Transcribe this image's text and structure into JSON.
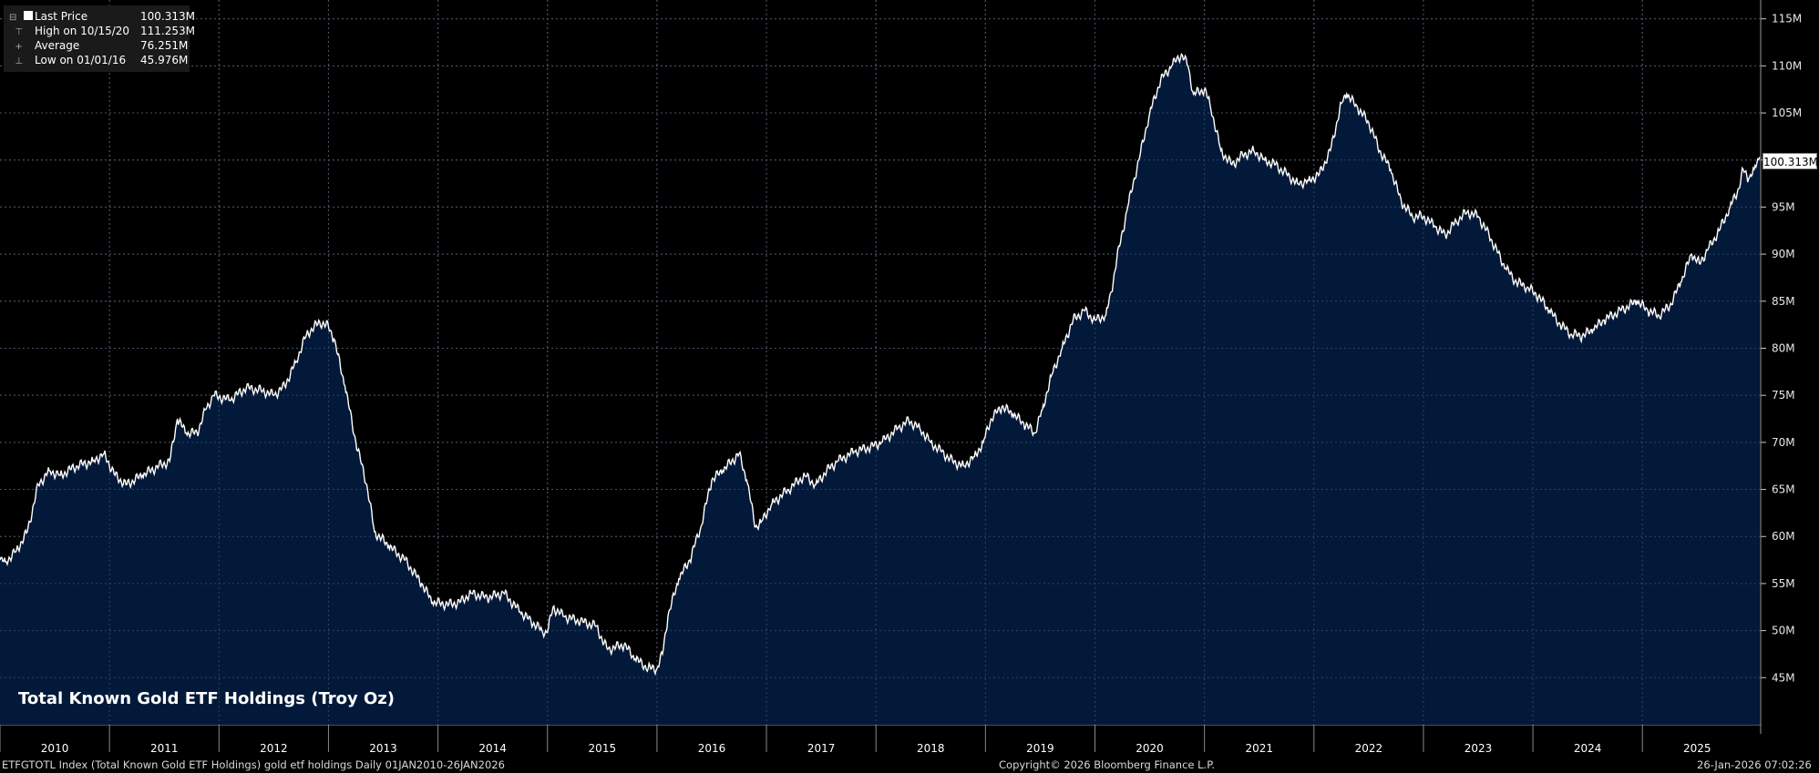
{
  "legend": {
    "last_label": "Last Price",
    "last_value": "100.313M",
    "high_label": "High on 10/15/20",
    "high_value": "111.253M",
    "avg_label": "Average",
    "avg_value": "76.251M",
    "low_label": "Low on 01/01/16",
    "low_value": "45.976M"
  },
  "last_tag": "100.313M",
  "footer": {
    "left": "ETFGTOTL Index (Total Known Gold ETF Holdings) gold etf holdings Daily 01JAN2010-26JAN2026",
    "center": "Copyright© 2026 Bloomberg Finance L.P.",
    "right": "26-Jan-2026 07:02:26"
  },
  "colors": {
    "background": "#000000",
    "area_fill": "#031a3a",
    "line": "#ffffff",
    "grid": "#6a6a6a"
  },
  "chart_data": {
    "type": "area",
    "title": "Total Known Gold ETF Holdings (Troy Oz)",
    "x_tick_labels": [
      "2010",
      "2011",
      "2012",
      "2013",
      "2014",
      "2015",
      "2016",
      "2017",
      "2018",
      "2019",
      "2020",
      "2021",
      "2022",
      "2023",
      "2024",
      "2025"
    ],
    "y_tick_labels": [
      "45M",
      "50M",
      "55M",
      "60M",
      "65M",
      "70M",
      "75M",
      "80M",
      "85M",
      "90M",
      "95M",
      "100M",
      "105M",
      "110M",
      "115M"
    ],
    "ylim": [
      40,
      117
    ],
    "y_unit": "M",
    "grid": true,
    "legend_position": "top-left",
    "series": [
      {
        "values": [
          [
            2010.0,
            57.5
          ],
          [
            2010.05,
            57.3
          ],
          [
            2010.15,
            58.5
          ],
          [
            2010.25,
            60.5
          ],
          [
            2010.35,
            65.5
          ],
          [
            2010.45,
            67.0
          ],
          [
            2010.55,
            66.5
          ],
          [
            2010.7,
            67.5
          ],
          [
            2010.85,
            68.0
          ],
          [
            2010.95,
            68.8
          ],
          [
            2011.05,
            66.5
          ],
          [
            2011.15,
            65.5
          ],
          [
            2011.3,
            66.5
          ],
          [
            2011.45,
            67.5
          ],
          [
            2011.55,
            68.0
          ],
          [
            2011.62,
            72.5
          ],
          [
            2011.7,
            71.0
          ],
          [
            2011.8,
            71.0
          ],
          [
            2011.88,
            73.5
          ],
          [
            2011.95,
            75.0
          ],
          [
            2012.1,
            74.5
          ],
          [
            2012.25,
            75.8
          ],
          [
            2012.4,
            75.5
          ],
          [
            2012.5,
            75.0
          ],
          [
            2012.6,
            76.0
          ],
          [
            2012.7,
            78.5
          ],
          [
            2012.8,
            81.5
          ],
          [
            2012.92,
            82.8
          ],
          [
            2013.0,
            82.3
          ],
          [
            2013.05,
            81.0
          ],
          [
            2013.15,
            76.0
          ],
          [
            2013.25,
            70.0
          ],
          [
            2013.35,
            65.5
          ],
          [
            2013.42,
            60.5
          ],
          [
            2013.55,
            59.0
          ],
          [
            2013.7,
            57.5
          ],
          [
            2013.85,
            55.0
          ],
          [
            2013.95,
            53.0
          ],
          [
            2014.1,
            52.8
          ],
          [
            2014.2,
            53.0
          ],
          [
            2014.3,
            54.0
          ],
          [
            2014.45,
            53.5
          ],
          [
            2014.6,
            54.0
          ],
          [
            2014.75,
            52.0
          ],
          [
            2014.85,
            51.0
          ],
          [
            2014.95,
            50.0
          ],
          [
            2015.0,
            49.8
          ],
          [
            2015.05,
            52.5
          ],
          [
            2015.15,
            51.5
          ],
          [
            2015.3,
            51.0
          ],
          [
            2015.45,
            50.5
          ],
          [
            2015.5,
            49.0
          ],
          [
            2015.55,
            48.0
          ],
          [
            2015.7,
            48.5
          ],
          [
            2015.8,
            47.0
          ],
          [
            2015.92,
            46.0
          ],
          [
            2016.0,
            45.976
          ],
          [
            2016.05,
            47.5
          ],
          [
            2016.1,
            51.5
          ],
          [
            2016.2,
            55.5
          ],
          [
            2016.3,
            57.5
          ],
          [
            2016.4,
            61.0
          ],
          [
            2016.5,
            66.0
          ],
          [
            2016.6,
            67.0
          ],
          [
            2016.75,
            68.8
          ],
          [
            2016.82,
            66.0
          ],
          [
            2016.9,
            61.0
          ],
          [
            2016.95,
            61.5
          ],
          [
            2017.05,
            63.5
          ],
          [
            2017.2,
            65.0
          ],
          [
            2017.35,
            66.5
          ],
          [
            2017.45,
            65.5
          ],
          [
            2017.55,
            67.0
          ],
          [
            2017.65,
            68.0
          ],
          [
            2017.8,
            69.0
          ],
          [
            2017.95,
            69.5
          ],
          [
            2018.05,
            70.0
          ],
          [
            2018.2,
            71.5
          ],
          [
            2018.3,
            72.3
          ],
          [
            2018.4,
            71.5
          ],
          [
            2018.5,
            70.0
          ],
          [
            2018.6,
            69.0
          ],
          [
            2018.7,
            68.0
          ],
          [
            2018.8,
            67.5
          ],
          [
            2018.9,
            68.5
          ],
          [
            2018.98,
            70.0
          ],
          [
            2019.05,
            72.5
          ],
          [
            2019.15,
            73.8
          ],
          [
            2019.25,
            73.0
          ],
          [
            2019.35,
            72.0
          ],
          [
            2019.45,
            71.0
          ],
          [
            2019.52,
            73.5
          ],
          [
            2019.6,
            77.0
          ],
          [
            2019.7,
            80.0
          ],
          [
            2019.8,
            83.0
          ],
          [
            2019.9,
            84.0
          ],
          [
            2020.0,
            83.0
          ],
          [
            2020.1,
            83.5
          ],
          [
            2020.15,
            86.0
          ],
          [
            2020.2,
            89.5
          ],
          [
            2020.3,
            95.0
          ],
          [
            2020.4,
            100.0
          ],
          [
            2020.5,
            105.0
          ],
          [
            2020.6,
            108.5
          ],
          [
            2020.7,
            110.0
          ],
          [
            2020.79,
            111.253
          ],
          [
            2020.85,
            110.0
          ],
          [
            2020.9,
            107.0
          ],
          [
            2021.0,
            107.5
          ],
          [
            2021.05,
            106.0
          ],
          [
            2021.15,
            101.0
          ],
          [
            2021.25,
            99.5
          ],
          [
            2021.35,
            100.5
          ],
          [
            2021.45,
            101.0
          ],
          [
            2021.55,
            100.0
          ],
          [
            2021.65,
            99.5
          ],
          [
            2021.75,
            98.5
          ],
          [
            2021.85,
            97.5
          ],
          [
            2021.95,
            97.8
          ],
          [
            2022.05,
            98.5
          ],
          [
            2022.15,
            101.0
          ],
          [
            2022.25,
            106.0
          ],
          [
            2022.3,
            107.0
          ],
          [
            2022.4,
            105.5
          ],
          [
            2022.5,
            104.0
          ],
          [
            2022.6,
            101.0
          ],
          [
            2022.7,
            99.0
          ],
          [
            2022.8,
            95.5
          ],
          [
            2022.9,
            94.0
          ],
          [
            2023.0,
            94.0
          ],
          [
            2023.1,
            93.0
          ],
          [
            2023.2,
            92.0
          ],
          [
            2023.3,
            93.5
          ],
          [
            2023.4,
            94.5
          ],
          [
            2023.5,
            94.0
          ],
          [
            2023.6,
            92.0
          ],
          [
            2023.75,
            88.5
          ],
          [
            2023.85,
            87.0
          ],
          [
            2023.95,
            86.5
          ],
          [
            2024.05,
            85.5
          ],
          [
            2024.15,
            84.0
          ],
          [
            2024.25,
            82.5
          ],
          [
            2024.35,
            81.5
          ],
          [
            2024.45,
            81.3
          ],
          [
            2024.55,
            82.0
          ],
          [
            2024.65,
            83.0
          ],
          [
            2024.8,
            84.0
          ],
          [
            2024.95,
            85.0
          ],
          [
            2025.05,
            84.0
          ],
          [
            2025.15,
            83.5
          ],
          [
            2025.25,
            84.5
          ],
          [
            2025.35,
            87.0
          ],
          [
            2025.45,
            90.0
          ],
          [
            2025.52,
            89.0
          ],
          [
            2025.6,
            90.5
          ],
          [
            2025.7,
            92.5
          ],
          [
            2025.8,
            95.0
          ],
          [
            2025.88,
            97.0
          ],
          [
            2025.92,
            99.0
          ],
          [
            2025.97,
            98.0
          ],
          [
            2026.02,
            99.0
          ],
          [
            2026.07,
            100.313
          ]
        ]
      }
    ]
  }
}
